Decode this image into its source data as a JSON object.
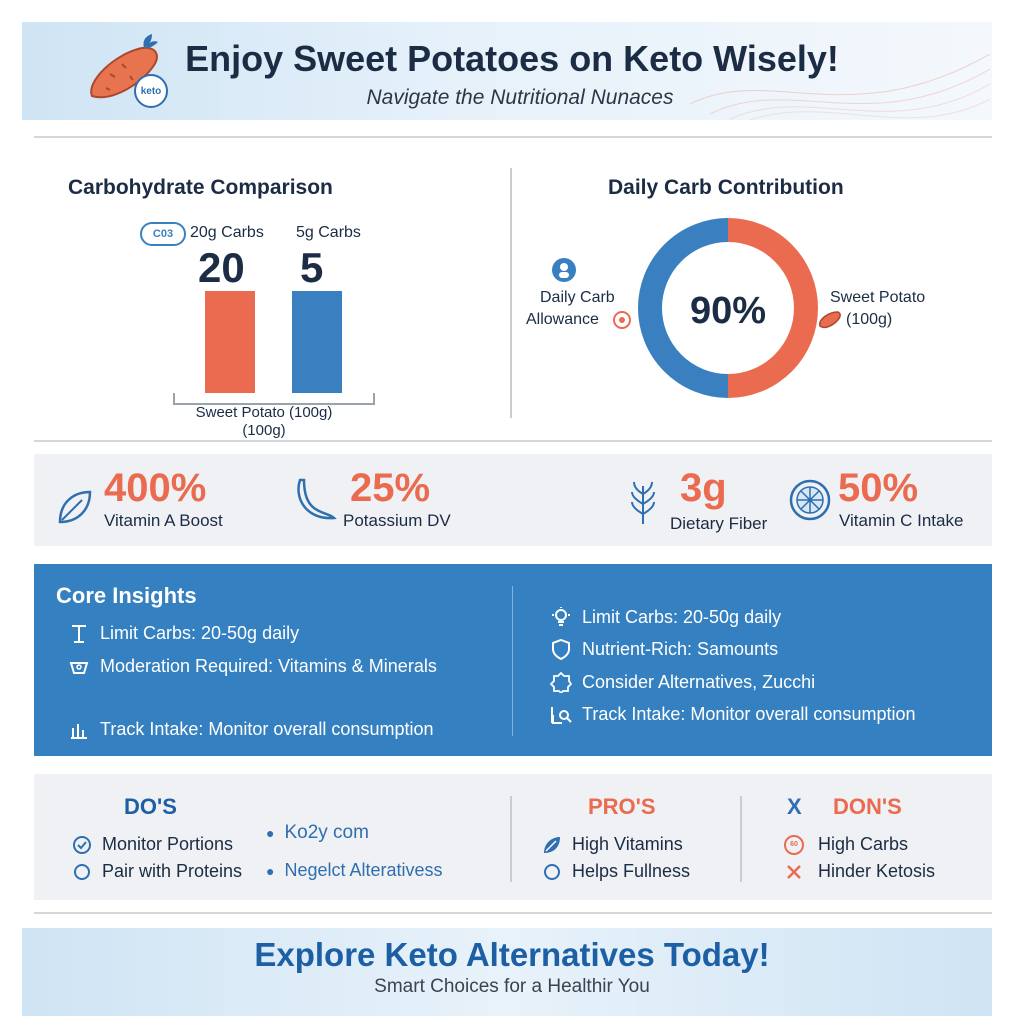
{
  "colors": {
    "accent_orange": "#ea6b50",
    "accent_blue": "#3a80c0",
    "navy": "#1b2c44",
    "panel_gray": "#eff1f4"
  },
  "header": {
    "title": "Enjoy Sweet Potatoes on Keto Wisely!",
    "subtitle": "Navigate the Nutritional Nunaces",
    "logo_badge": "keto",
    "logo_icon": "sweet-potato-icon"
  },
  "comparison": {
    "title": "Carbohydrate Comparison",
    "icon_text": "C03",
    "bars": [
      {
        "label": "20g Carbs",
        "value_text": "20",
        "value": 20,
        "color": "#ea6b50"
      },
      {
        "label": "5g Carbs",
        "value_text": "5",
        "value": 5,
        "color": "#3a80c0"
      }
    ],
    "x_caption_line1": "Sweet Potato (100g)",
    "x_caption_line2": "(100g)"
  },
  "contribution": {
    "title": "Daily Carb Contribution",
    "center_text": "90%",
    "percent": 90,
    "left_label_line1": "Daily Carb",
    "left_label_line2": "Allowance",
    "right_label_line1": "Sweet Potato",
    "right_label_line2": "(100g)",
    "left_color": "#3a80c0",
    "right_color": "#ea6b50"
  },
  "stats": [
    {
      "value": "400%",
      "label": "Vitamin A Boost",
      "icon": "leaf-icon"
    },
    {
      "value": "25%",
      "label": "Potassium DV",
      "icon": "banana-icon"
    },
    {
      "value": "3g",
      "label": "Dietary Fiber",
      "icon": "wheat-icon"
    },
    {
      "value": "50%",
      "label": "Vitamin C Intake",
      "icon": "citrus-icon"
    }
  ],
  "insights": {
    "title": "Core Insights",
    "left": [
      {
        "text": "Limit Carbs: 20-50g daily",
        "icon": "scale-icon"
      },
      {
        "text": "Moderation Required: Vitamins & Minerals",
        "icon": "bowl-icon"
      },
      {
        "text": "Track Intake: Monitor overall consumption",
        "icon": "chart-icon"
      }
    ],
    "right": [
      {
        "text": "Limit Carbs: 20-50g daily",
        "icon": "bulb-icon"
      },
      {
        "text": "Nutrient-Rich: Samounts",
        "icon": "shield-icon"
      },
      {
        "text": "Consider Alternatives, Zucchi",
        "icon": "badge-icon"
      },
      {
        "text": "Track Intake: Monitor overall consumption",
        "icon": "magnify-chart-icon"
      }
    ]
  },
  "dos": {
    "title": "DO'S",
    "items": [
      {
        "text": "Monitor Portions",
        "icon": "check-circle-icon"
      },
      {
        "text": "Pair with Proteins",
        "icon": "circle-icon"
      }
    ],
    "extra": [
      {
        "text": "Ko2y com",
        "icon": "dot-icon"
      },
      {
        "text": "Negelct Alterativess",
        "icon": "dot-icon"
      }
    ]
  },
  "pros": {
    "title": "PRO'S",
    "items": [
      {
        "text": "High Vitamins",
        "icon": "leaf-icon"
      },
      {
        "text": "Helps Fullness",
        "icon": "circle-icon"
      }
    ]
  },
  "donts": {
    "title_mark": "X",
    "title": "DON'S",
    "items": [
      {
        "text": "High Carbs",
        "icon": "badge-icon",
        "badge": "60"
      },
      {
        "text": "Hinder Ketosis",
        "icon": "x-icon"
      }
    ]
  },
  "footer": {
    "title": "Explore Keto Alternatives Today!",
    "subtitle": "Smart Choices for a Healthir You"
  }
}
